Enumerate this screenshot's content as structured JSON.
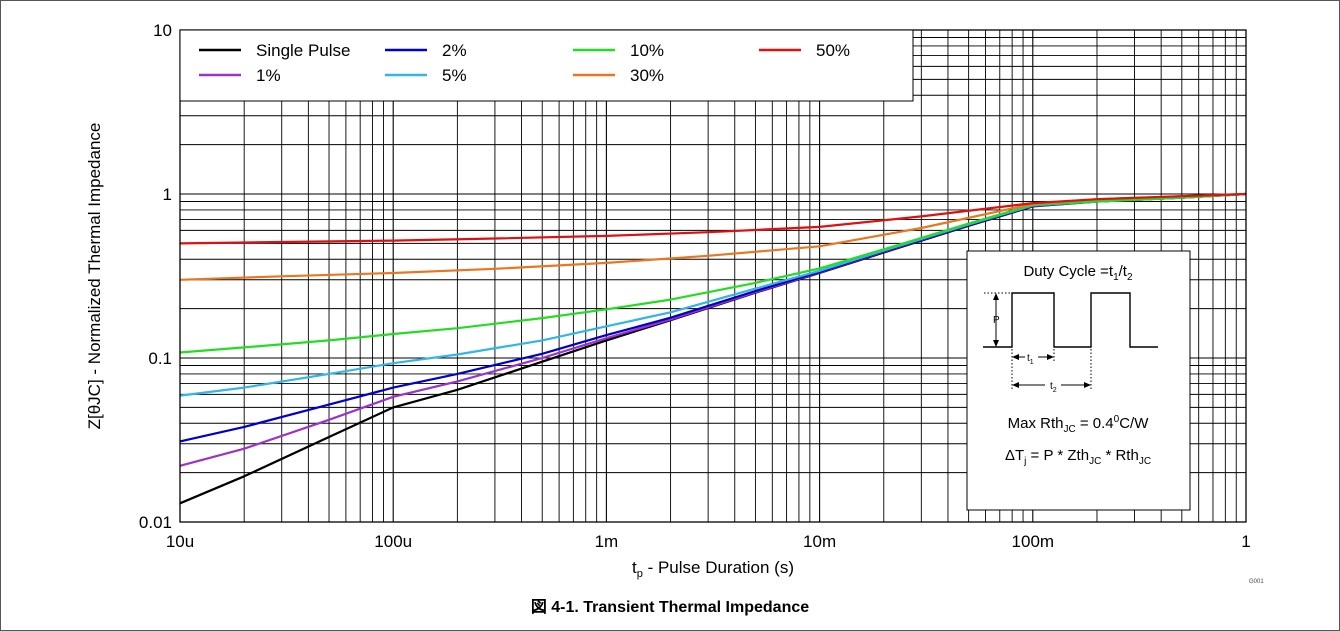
{
  "figure": {
    "caption": "図 4-1. Transient Thermal Impedance",
    "code": "G001"
  },
  "chart_data": {
    "type": "line",
    "title": "",
    "xlabel": {
      "main": "t",
      "sub": "p",
      "rest": " - Pulse Duration (s)"
    },
    "ylabel": "Z[θJC] - Normalized Thermal Impedance",
    "xscale": "log",
    "yscale": "log",
    "xlim": [
      1e-05,
      1
    ],
    "ylim": [
      0.01,
      10
    ],
    "x_ticks": [
      {
        "value": 1e-05,
        "label": "10u"
      },
      {
        "value": 0.0001,
        "label": "100u"
      },
      {
        "value": 0.001,
        "label": "1m"
      },
      {
        "value": 0.01,
        "label": "10m"
      },
      {
        "value": 0.1,
        "label": "100m"
      },
      {
        "value": 1,
        "label": "1"
      }
    ],
    "y_ticks": [
      {
        "value": 0.01,
        "label": "0.01"
      },
      {
        "value": 0.1,
        "label": "0.1"
      },
      {
        "value": 1,
        "label": "1"
      },
      {
        "value": 10,
        "label": "10"
      }
    ],
    "grid": true,
    "legend_position": "top-left",
    "series": [
      {
        "name": "Single Pulse",
        "color": "#000000",
        "x": [
          1e-05,
          2e-05,
          5e-05,
          0.0001,
          0.0002,
          0.0005,
          0.001,
          0.002,
          0.005,
          0.01,
          0.02,
          0.05,
          0.1,
          0.2,
          0.5,
          1
        ],
        "y": [
          0.013,
          0.019,
          0.033,
          0.05,
          0.064,
          0.095,
          0.128,
          0.17,
          0.25,
          0.33,
          0.44,
          0.64,
          0.84,
          0.9,
          0.95,
          1.0
        ]
      },
      {
        "name": "1%",
        "color": "#9933cc",
        "x": [
          1e-05,
          2e-05,
          5e-05,
          0.0001,
          0.0002,
          0.0005,
          0.001,
          0.002,
          0.005,
          0.01,
          0.02,
          0.05,
          0.1,
          0.2,
          0.5,
          1
        ],
        "y": [
          0.022,
          0.028,
          0.042,
          0.058,
          0.072,
          0.1,
          0.132,
          0.172,
          0.252,
          0.332,
          0.445,
          0.645,
          0.845,
          0.9,
          0.95,
          1.0
        ]
      },
      {
        "name": "2%",
        "color": "#0000cc",
        "x": [
          1e-05,
          2e-05,
          5e-05,
          0.0001,
          0.0002,
          0.0005,
          0.001,
          0.002,
          0.005,
          0.01,
          0.02,
          0.05,
          0.1,
          0.2,
          0.5,
          1
        ],
        "y": [
          0.031,
          0.038,
          0.052,
          0.066,
          0.08,
          0.106,
          0.138,
          0.176,
          0.256,
          0.335,
          0.448,
          0.648,
          0.848,
          0.9,
          0.95,
          1.0
        ]
      },
      {
        "name": "5%",
        "color": "#33b5e5",
        "x": [
          1e-05,
          2e-05,
          5e-05,
          0.0001,
          0.0002,
          0.0005,
          0.001,
          0.002,
          0.005,
          0.01,
          0.02,
          0.05,
          0.1,
          0.2,
          0.5,
          1
        ],
        "y": [
          0.059,
          0.066,
          0.08,
          0.093,
          0.105,
          0.128,
          0.156,
          0.19,
          0.265,
          0.34,
          0.452,
          0.652,
          0.852,
          0.9,
          0.95,
          1.0
        ]
      },
      {
        "name": "10%",
        "color": "#22dd22",
        "x": [
          1e-05,
          2e-05,
          5e-05,
          0.0001,
          0.0002,
          0.0005,
          0.001,
          0.002,
          0.005,
          0.01,
          0.02,
          0.05,
          0.1,
          0.2,
          0.5,
          1
        ],
        "y": [
          0.108,
          0.116,
          0.128,
          0.14,
          0.152,
          0.175,
          0.198,
          0.227,
          0.287,
          0.352,
          0.46,
          0.66,
          0.86,
          0.9,
          0.95,
          1.0
        ]
      },
      {
        "name": "30%",
        "color": "#e87722",
        "x": [
          1e-05,
          3e-05,
          0.0001,
          0.0003,
          0.001,
          0.003,
          0.01,
          0.03,
          0.1,
          0.2,
          0.5,
          1
        ],
        "y": [
          0.3,
          0.315,
          0.33,
          0.35,
          0.38,
          0.42,
          0.48,
          0.62,
          0.87,
          0.93,
          0.97,
          1.0
        ]
      },
      {
        "name": "50%",
        "color": "#dd1111",
        "x": [
          1e-05,
          3e-05,
          0.0001,
          0.0003,
          0.001,
          0.003,
          0.01,
          0.03,
          0.1,
          0.2,
          0.5,
          1
        ],
        "y": [
          0.5,
          0.51,
          0.52,
          0.535,
          0.555,
          0.585,
          0.63,
          0.73,
          0.88,
          0.93,
          0.97,
          1.0
        ]
      }
    ],
    "annotation": {
      "duty_cycle": {
        "main": "Duty Cycle =t",
        "s1": "1",
        "mid": "/t",
        "s2": "2"
      },
      "p_label": "P",
      "t1_label": {
        "main": "t",
        "sub": "1"
      },
      "t2_label": {
        "main": "t",
        "sub": "2"
      },
      "max_rth": {
        "a": "Max Rth",
        "a_sub": "JC",
        "b": " = 0.4",
        "b_sup": "0",
        "c": "C/W"
      },
      "delta_t": {
        "a": "ΔT",
        "a_sub": "j",
        "b": " = P * Zth",
        "b_sub": "JC",
        "c": " * Rth",
        "c_sub": "JC"
      }
    }
  }
}
